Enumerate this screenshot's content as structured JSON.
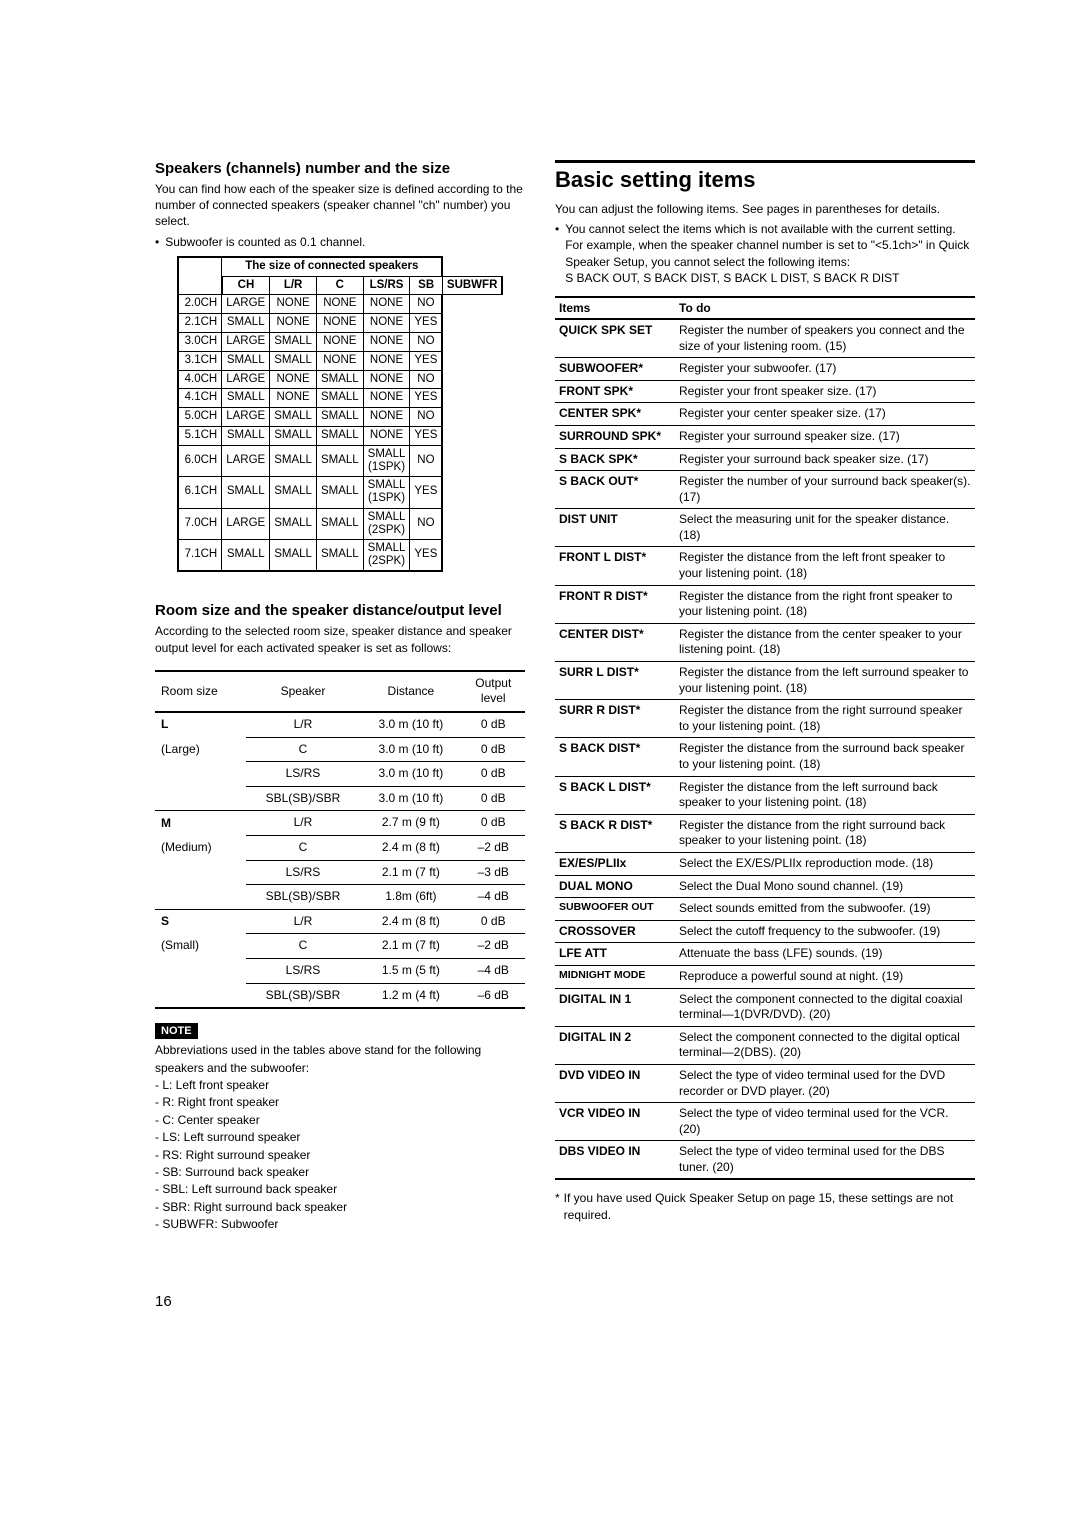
{
  "left": {
    "h1": "Speakers (channels) number and the size",
    "p1": "You can find how each of the speaker size is defined according to the number of connected speakers (speaker channel \"ch\" number) you select.",
    "bullet1": "Subwoofer is counted as 0.1 channel.",
    "tbl1_overhead": "The size of connected speakers",
    "tbl1_cols": [
      "CH",
      "L/R",
      "C",
      "LS/RS",
      "SB",
      "SUBWFR"
    ],
    "tbl1_rows": [
      [
        "2.0CH",
        "LARGE",
        "NONE",
        "NONE",
        "NONE",
        "NO"
      ],
      [
        "2.1CH",
        "SMALL",
        "NONE",
        "NONE",
        "NONE",
        "YES"
      ],
      [
        "3.0CH",
        "LARGE",
        "SMALL",
        "NONE",
        "NONE",
        "NO"
      ],
      [
        "3.1CH",
        "SMALL",
        "SMALL",
        "NONE",
        "NONE",
        "YES"
      ],
      [
        "4.0CH",
        "LARGE",
        "NONE",
        "SMALL",
        "NONE",
        "NO"
      ],
      [
        "4.1CH",
        "SMALL",
        "NONE",
        "SMALL",
        "NONE",
        "YES"
      ],
      [
        "5.0CH",
        "LARGE",
        "SMALL",
        "SMALL",
        "NONE",
        "NO"
      ],
      [
        "5.1CH",
        "SMALL",
        "SMALL",
        "SMALL",
        "NONE",
        "YES"
      ],
      [
        "6.0CH",
        "LARGE",
        "SMALL",
        "SMALL",
        "SMALL\n(1SPK)",
        "NO"
      ],
      [
        "6.1CH",
        "SMALL",
        "SMALL",
        "SMALL",
        "SMALL\n(1SPK)",
        "YES"
      ],
      [
        "7.0CH",
        "LARGE",
        "SMALL",
        "SMALL",
        "SMALL\n(2SPK)",
        "NO"
      ],
      [
        "7.1CH",
        "SMALL",
        "SMALL",
        "SMALL",
        "SMALL\n(2SPK)",
        "YES"
      ]
    ],
    "h2": "Room size and the speaker distance/output level",
    "p2": "According to the selected room size, speaker distance and speaker output level for each activated speaker is set as follows:",
    "tbl2_cols": [
      "Room size",
      "Speaker",
      "Distance",
      "Output\nlevel"
    ],
    "tbl2_groups": [
      {
        "size_bold": "L",
        "size_sub": "(Large)",
        "rows": [
          [
            "L/R",
            "3.0 m (10 ft)",
            "0 dB"
          ],
          [
            "C",
            "3.0 m (10 ft)",
            "0 dB"
          ],
          [
            "LS/RS",
            "3.0 m (10 ft)",
            "0 dB"
          ],
          [
            "SBL(SB)/SBR",
            "3.0 m (10 ft)",
            "0 dB"
          ]
        ]
      },
      {
        "size_bold": "M",
        "size_sub": "(Medium)",
        "rows": [
          [
            "L/R",
            "2.7 m (9 ft)",
            "0 dB"
          ],
          [
            "C",
            "2.4 m (8 ft)",
            "–2 dB"
          ],
          [
            "LS/RS",
            "2.1 m (7 ft)",
            "–3 dB"
          ],
          [
            "SBL(SB)/SBR",
            "1.8m (6ft)",
            "–4 dB"
          ]
        ]
      },
      {
        "size_bold": "S",
        "size_sub": "(Small)",
        "rows": [
          [
            "L/R",
            "2.4 m (8 ft)",
            "0 dB"
          ],
          [
            "C",
            "2.1 m (7 ft)",
            "–2 dB"
          ],
          [
            "LS/RS",
            "1.5 m (5 ft)",
            "–4 dB"
          ],
          [
            "SBL(SB)/SBR",
            "1.2 m (4 ft)",
            "–6 dB"
          ]
        ]
      }
    ],
    "note_label": "NOTE",
    "abbrev_intro": "Abbreviations used in the tables above stand for the following speakers and the subwoofer:",
    "abbrevs": [
      "- L: Left front speaker",
      "- R: Right front speaker",
      "- C: Center speaker",
      "- LS: Left surround speaker",
      "- RS: Right surround speaker",
      "- SB: Surround back speaker",
      "- SBL: Left surround back speaker",
      "- SBR: Right surround back speaker",
      "- SUBWFR: Subwoofer"
    ]
  },
  "right": {
    "heading": "Basic setting items",
    "intro": "You can adjust the following items. See pages in parentheses for details.",
    "bullet": "You cannot select the items which is not available with the current setting. For example, when the speaker channel number is set to \"<5.1ch>\" in Quick Speaker Setup, you cannot select the following items:",
    "bullet_sub": "S BACK OUT, S BACK DIST, S BACK L DIST, S BACK R DIST",
    "tbl_cols": [
      "Items",
      "To do"
    ],
    "tbl_rows": [
      [
        "QUICK SPK SET",
        "Register the number of speakers you connect and the size of your listening room. (15)"
      ],
      [
        "SUBWOOFER*",
        "Register your subwoofer. (17)"
      ],
      [
        "FRONT SPK*",
        "Register your front speaker size. (17)"
      ],
      [
        "CENTER SPK*",
        "Register your center speaker size. (17)"
      ],
      [
        "SURROUND SPK*",
        "Register your surround speaker size. (17)"
      ],
      [
        "S BACK SPK*",
        "Register your surround back speaker size. (17)"
      ],
      [
        "S BACK OUT*",
        "Register the number of your surround back speaker(s). (17)"
      ],
      [
        "DIST UNIT",
        "Select the measuring unit for the speaker distance. (18)"
      ],
      [
        "FRONT L DIST*",
        "Register the distance from the left front speaker to your listening point. (18)"
      ],
      [
        "FRONT R DIST*",
        "Register the distance from the right front speaker to your listening point. (18)"
      ],
      [
        "CENTER DIST*",
        "Register the distance from the center speaker to your listening point. (18)"
      ],
      [
        "SURR L DIST*",
        "Register the distance from the left surround speaker to your listening point. (18)"
      ],
      [
        "SURR R DIST*",
        "Register the distance from the right surround speaker to your listening point. (18)"
      ],
      [
        "S BACK DIST*",
        "Register the distance from the surround back speaker to your listening point. (18)"
      ],
      [
        "S BACK L DIST*",
        "Register the distance from the left surround back speaker to your listening point. (18)"
      ],
      [
        "S BACK R DIST*",
        "Register the distance from the right surround back speaker to your listening point. (18)"
      ],
      [
        "EX/ES/PLIIx",
        "Select the EX/ES/PLIIx reproduction mode. (18)"
      ],
      [
        "DUAL MONO",
        "Select the Dual Mono sound channel. (19)"
      ],
      [
        "SUBWOOFER OUT",
        "Select sounds emitted from the subwoofer. (19)"
      ],
      [
        "CROSSOVER",
        "Select the cutoff frequency to the subwoofer. (19)"
      ],
      [
        "LFE ATT",
        "Attenuate the bass (LFE) sounds. (19)"
      ],
      [
        "MIDNIGHT MODE",
        "Reproduce a powerful sound at night. (19)"
      ],
      [
        "DIGITAL IN 1",
        "Select the component connected to the digital coaxial terminal—1(DVR/DVD). (20)"
      ],
      [
        "DIGITAL IN 2",
        "Select the component connected to the digital optical terminal—2(DBS). (20)"
      ],
      [
        "DVD VIDEO IN",
        "Select the type of video terminal used for the DVD recorder or DVD player. (20)"
      ],
      [
        "VCR VIDEO IN",
        "Select the type of video terminal used for the VCR. (20)"
      ],
      [
        "DBS VIDEO IN",
        "Select the type of video terminal used for the DBS tuner. (20)"
      ]
    ],
    "footnote": "If you have used Quick Speaker Setup on page 15, these settings are not required."
  },
  "page_number": "16"
}
